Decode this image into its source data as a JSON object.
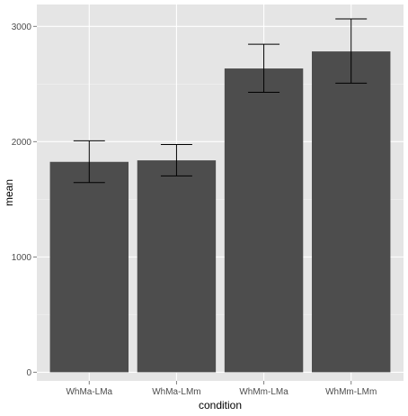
{
  "chart_data": {
    "type": "bar",
    "title": "",
    "xlabel": "condition",
    "ylabel": "mean",
    "categories": [
      "WhMa-LMa",
      "WhMa-LMm",
      "WhMm-LMa",
      "WhMm-LMm"
    ],
    "values": [
      1825,
      1838,
      2635,
      2783
    ],
    "error_low": [
      1645,
      1703,
      2428,
      2508
    ],
    "error_high": [
      2008,
      1975,
      2845,
      3065
    ],
    "ylim": [
      -75,
      3190
    ],
    "yticks": [
      0,
      1000,
      2000,
      3000
    ],
    "ytick_labels": [
      "0",
      "1000",
      "2000",
      "3000"
    ],
    "grid": true,
    "legend": "none",
    "colors": {
      "panel_background": "#e5e5e5",
      "grid_major": "#ffffff",
      "grid_minor": "#f2f2f2",
      "bar_fill": "#4d4d4d",
      "error_bar": "#000000",
      "tick_mark": "#7f7f7f"
    }
  }
}
